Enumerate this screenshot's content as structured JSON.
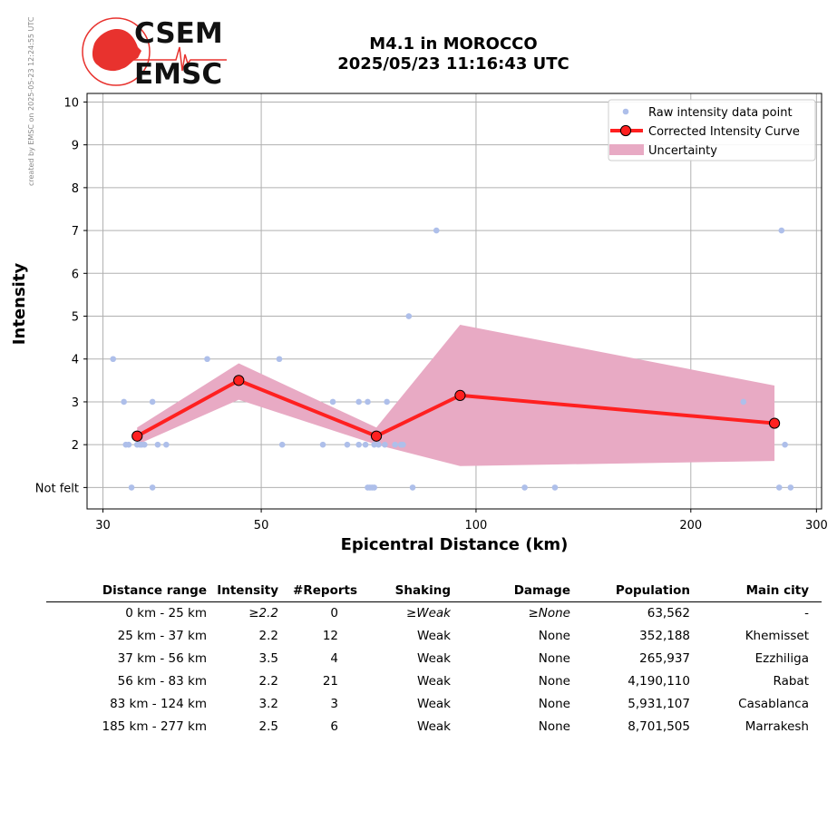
{
  "created_note": "created by EMSC on 2025-05-23 12:24:55 UTC",
  "logo": {
    "line1": "CSEM",
    "line2": "EMSC"
  },
  "title_line1": "M4.1 in MOROCCO",
  "title_line2": "2025/05/23 11:16:43 UTC",
  "chart_data": {
    "type": "scatter",
    "xlabel": "Epicentral Distance (km)",
    "ylabel": "Intensity",
    "x_scale": "log",
    "xlim": [
      28.5,
      305
    ],
    "ylim": [
      0.5,
      10.2
    ],
    "x_ticks": [
      30,
      50,
      100,
      200,
      300
    ],
    "y_ticks": [
      1,
      2,
      3,
      4,
      5,
      6,
      7,
      8,
      9,
      10
    ],
    "y_tick_labels": [
      "Not felt",
      "2",
      "3",
      "4",
      "5",
      "6",
      "7",
      "8",
      "9",
      "10"
    ],
    "grid": true,
    "legend_position": "top-right",
    "colors": {
      "raw": "#aebfea",
      "curve": "#ff2020",
      "uncertainty": "#e8aac4"
    },
    "legend": [
      {
        "label": "Raw intensity data point",
        "kind": "raw"
      },
      {
        "label": "Corrected Intensity Curve",
        "kind": "curve"
      },
      {
        "label": "Uncertainty",
        "kind": "band"
      }
    ],
    "raw_points": [
      [
        31,
        4
      ],
      [
        32.1,
        3
      ],
      [
        32.3,
        2
      ],
      [
        32.6,
        2
      ],
      [
        32.9,
        1
      ],
      [
        33.5,
        2
      ],
      [
        33.8,
        2
      ],
      [
        34.0,
        2
      ],
      [
        34.3,
        2
      ],
      [
        35.2,
        3
      ],
      [
        35.2,
        1
      ],
      [
        35.8,
        2
      ],
      [
        36.8,
        2
      ],
      [
        42,
        4
      ],
      [
        53,
        4
      ],
      [
        53.5,
        2
      ],
      [
        61,
        2
      ],
      [
        63,
        3
      ],
      [
        66,
        2
      ],
      [
        68.5,
        3
      ],
      [
        68.5,
        2
      ],
      [
        70.5,
        3
      ],
      [
        70,
        2
      ],
      [
        70.5,
        1
      ],
      [
        71,
        1
      ],
      [
        71.5,
        1
      ],
      [
        72,
        2
      ],
      [
        72,
        1
      ],
      [
        73,
        2
      ],
      [
        74.5,
        2
      ],
      [
        75,
        3
      ],
      [
        77,
        2
      ],
      [
        78.5,
        2
      ],
      [
        79,
        2
      ],
      [
        80.5,
        5
      ],
      [
        81.5,
        1
      ],
      [
        88,
        7
      ],
      [
        117,
        1
      ],
      [
        129,
        1
      ],
      [
        237,
        3
      ],
      [
        266,
        1
      ],
      [
        268,
        7
      ],
      [
        271,
        2
      ],
      [
        276,
        1
      ]
    ],
    "curve": [
      {
        "x": 33.5,
        "y": 2.2
      },
      {
        "x": 46.5,
        "y": 3.5
      },
      {
        "x": 72.5,
        "y": 2.2
      },
      {
        "x": 95.0,
        "y": 3.15
      },
      {
        "x": 262.0,
        "y": 2.5
      }
    ],
    "band_upper": [
      [
        33.5,
        2.4
      ],
      [
        46.5,
        3.9
      ],
      [
        72.5,
        2.4
      ],
      [
        95.0,
        4.8
      ],
      [
        262.0,
        3.38
      ]
    ],
    "band_lower": [
      [
        33.5,
        2.0
      ],
      [
        46.5,
        3.05
      ],
      [
        72.5,
        2.0
      ],
      [
        95.0,
        1.5
      ],
      [
        262.0,
        1.62
      ]
    ]
  },
  "table": {
    "headers": [
      "Distance range",
      "Intensity",
      "#Reports",
      "Shaking",
      "Damage",
      "Population",
      "Main city"
    ],
    "rows": [
      [
        "0 km -   25 km",
        "≥2.2",
        "0",
        "≥Weak",
        "≥None",
        "63,562",
        "-"
      ],
      [
        "25 km -   37 km",
        "2.2",
        "12",
        "Weak",
        "None",
        "352,188",
        "Khemisset"
      ],
      [
        "37 km -   56 km",
        "3.5",
        "4",
        "Weak",
        "None",
        "265,937",
        "Ezzhiliga"
      ],
      [
        "56 km -   83 km",
        "2.2",
        "21",
        "Weak",
        "None",
        "4,190,110",
        "Rabat"
      ],
      [
        "83 km -  124 km",
        "3.2",
        "3",
        "Weak",
        "None",
        "5,931,107",
        "Casablanca"
      ],
      [
        "185 km -  277 km",
        "2.5",
        "6",
        "Weak",
        "None",
        "8,701,505",
        "Marrakesh"
      ]
    ]
  }
}
